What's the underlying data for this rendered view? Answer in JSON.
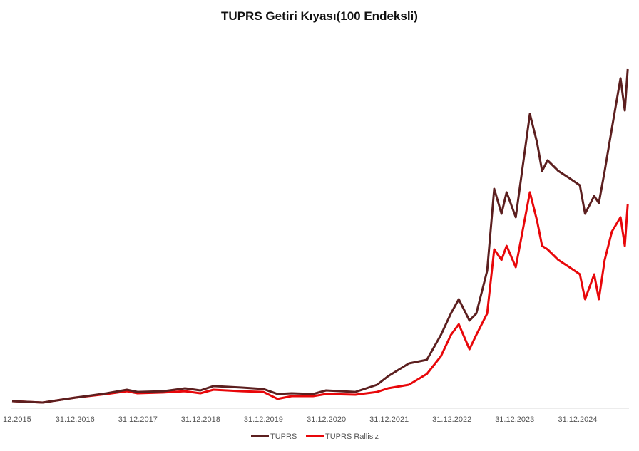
{
  "chart_data": {
    "type": "line",
    "title": "TUPRS Getiri Kıyası(100 Endeksli)",
    "xlabel": "",
    "ylabel": "",
    "x_tick_labels": [
      "12.2015",
      "31.12.2016",
      "31.12.2017",
      "31.12.2018",
      "31.12.2019",
      "31.12.2020",
      "31.12.2021",
      "31.12.2022",
      "31.12.2023",
      "31.12.2024"
    ],
    "x_ticks": [
      "2015-12-31",
      "2016-12-31",
      "2017-12-31",
      "2018-12-31",
      "2019-12-31",
      "2020-12-31",
      "2021-12-31",
      "2022-12-31",
      "2023-12-31",
      "2024-12-31"
    ],
    "xlim": [
      "2015-12-25",
      "2025-10-20"
    ],
    "ylim": [
      0,
      3000
    ],
    "y_axis_visible": false,
    "grid": false,
    "legend_position": "bottom",
    "x": [
      "2015-12-31",
      "2016-06-25",
      "2016-12-31",
      "2017-07-03",
      "2017-10-28",
      "2017-12-29",
      "2018-05-28",
      "2018-10-01",
      "2018-12-29",
      "2019-03-15",
      "2019-08-28",
      "2019-12-31",
      "2020-03-22",
      "2020-06-12",
      "2020-10-15",
      "2020-12-29",
      "2021-06-18",
      "2021-10-22",
      "2021-12-25",
      "2022-04-25",
      "2022-08-07",
      "2022-10-28",
      "2022-12-25",
      "2023-02-09",
      "2023-04-12",
      "2023-05-22",
      "2023-07-24",
      "2023-09-03",
      "2023-10-15",
      "2023-11-14",
      "2024-01-06",
      "2024-03-28",
      "2024-05-09",
      "2024-06-07",
      "2024-07-09",
      "2024-09-10",
      "2024-11-13",
      "2025-01-13",
      "2025-02-12",
      "2025-04-06",
      "2025-05-03",
      "2025-06-06",
      "2025-07-18",
      "2025-09-06",
      "2025-10-01",
      "2025-10-18"
    ],
    "series": [
      {
        "name": "TUPRS",
        "color": "#5c1f1f",
        "values": [
          100,
          88,
          129,
          165,
          194,
          176,
          182,
          206,
          188,
          224,
          212,
          200,
          159,
          165,
          159,
          188,
          176,
          235,
          306,
          412,
          441,
          647,
          824,
          941,
          765,
          824,
          1176,
          1853,
          1647,
          1824,
          1618,
          2471,
          2235,
          2000,
          2088,
          2000,
          1941,
          1882,
          1647,
          1794,
          1735,
          2000,
          2353,
          2765,
          2500,
          2841
        ]
      },
      {
        "name": "TUPRS Rallisiz",
        "color": "#e8070a",
        "values": [
          100,
          88,
          129,
          159,
          182,
          165,
          171,
          182,
          165,
          194,
          182,
          176,
          118,
          141,
          141,
          159,
          153,
          176,
          206,
          235,
          324,
          471,
          647,
          735,
          529,
          647,
          824,
          1353,
          1265,
          1382,
          1206,
          1824,
          1588,
          1382,
          1353,
          1265,
          1206,
          1147,
          941,
          1147,
          941,
          1265,
          1500,
          1618,
          1382,
          1724
        ]
      }
    ]
  }
}
